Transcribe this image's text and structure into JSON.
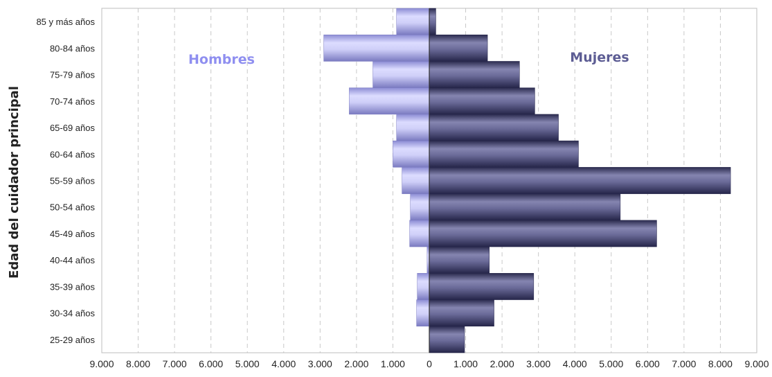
{
  "chart_data": {
    "type": "bar",
    "orientation": "horizontal",
    "ylabel": "Edad del cuidador principal",
    "categories": [
      "85 y más años",
      "80-84 años",
      "75-79 años",
      "70-74 años",
      "65-69 años",
      "60-64 años",
      "55-59 años",
      "50-54 años",
      "45-49 años",
      "40-44 años",
      "35-39 años",
      "30-34 años",
      "25-29 años"
    ],
    "series": [
      {
        "name": "Hombres",
        "side": "left",
        "color": "#b9b9ef",
        "values": [
          900,
          2900,
          1550,
          2200,
          900,
          1000,
          750,
          520,
          540,
          60,
          330,
          350,
          0
        ]
      },
      {
        "name": "Mujeres",
        "side": "right",
        "color": "#55557f",
        "values": [
          180,
          1600,
          2480,
          2900,
          3550,
          4100,
          8280,
          5250,
          6250,
          1650,
          2870,
          1780,
          970
        ]
      }
    ],
    "xlim": [
      -9000,
      9000
    ],
    "xticks": [
      "9.000",
      "8.000",
      "7.000",
      "6.000",
      "5.000",
      "4.000",
      "3.000",
      "2.000",
      "1.000",
      "0",
      "1.000",
      "2.000",
      "3.000",
      "4.000",
      "5.000",
      "6.000",
      "7.000",
      "8.000",
      "9.000"
    ],
    "grid": "vertical dashed",
    "legend": "inline labels"
  }
}
